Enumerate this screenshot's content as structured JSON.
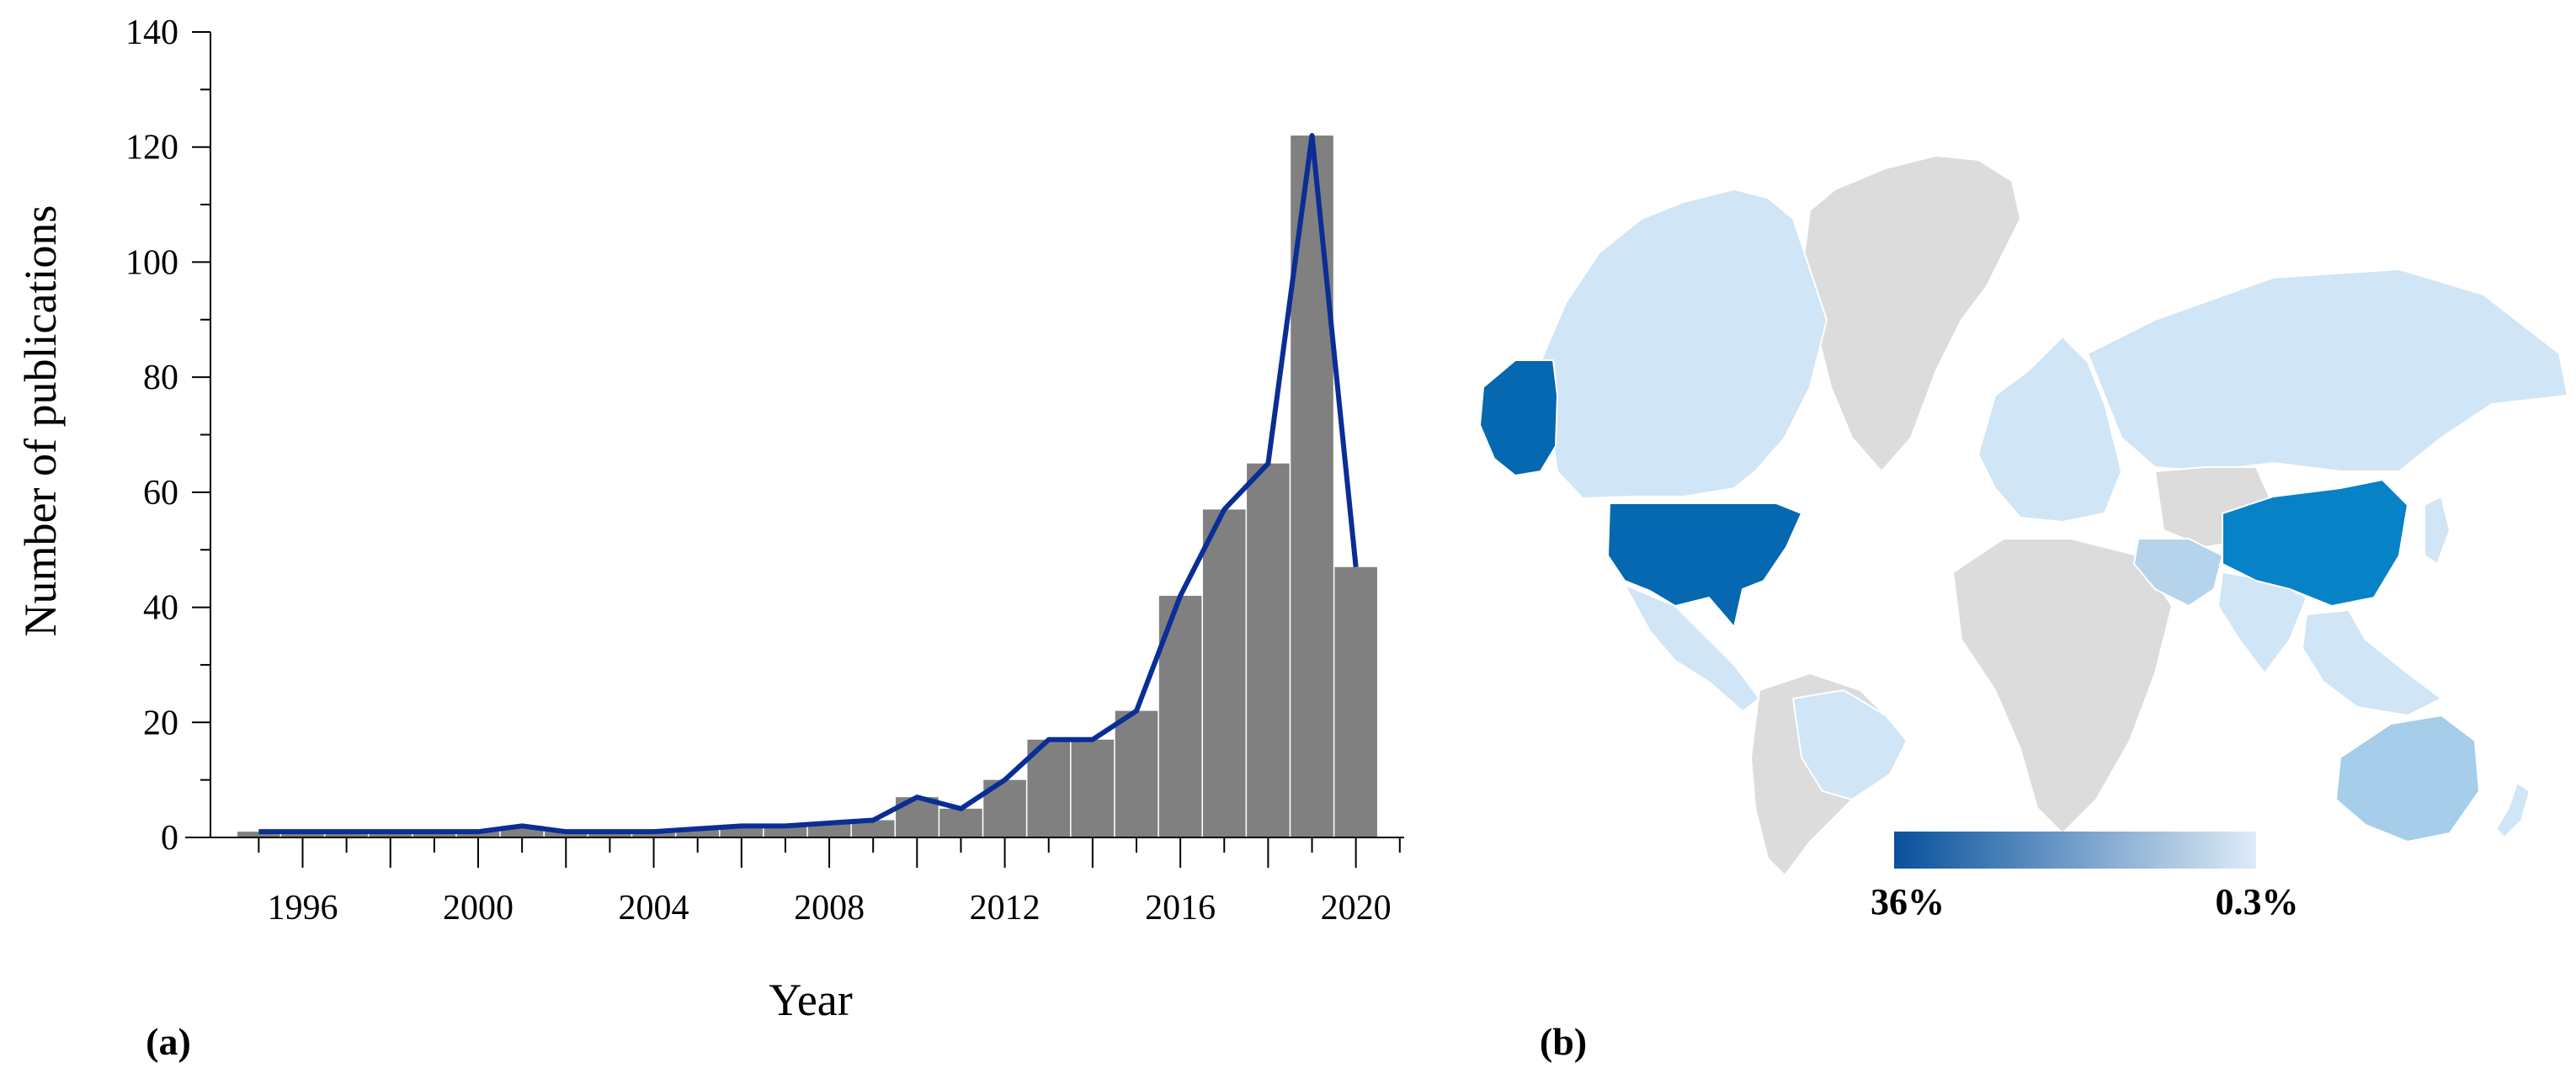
{
  "panel_labels": {
    "a": "(a)",
    "b": "(b)"
  },
  "chart_data": [
    {
      "type": "bar",
      "title": "",
      "xlabel": "Year",
      "ylabel": "Number of publications",
      "x": [
        1995,
        1996,
        1997,
        1998,
        1999,
        2000,
        2001,
        2002,
        2003,
        2004,
        2005,
        2006,
        2007,
        2008,
        2009,
        2010,
        2011,
        2012,
        2013,
        2014,
        2015,
        2016,
        2017,
        2018,
        2019,
        2020
      ],
      "values": [
        1,
        1,
        1,
        1,
        1,
        1,
        2,
        1,
        1,
        1,
        1.5,
        2,
        2,
        2.5,
        3,
        7,
        5,
        10,
        17,
        17,
        22,
        42,
        57,
        65,
        122,
        47
      ],
      "line_values": [
        1,
        1,
        1,
        1,
        1,
        1,
        2,
        1,
        1,
        1,
        1.5,
        2,
        2,
        2.5,
        3,
        7,
        5,
        10,
        17,
        17,
        22,
        42,
        57,
        65,
        122,
        47
      ],
      "ylim": [
        0,
        140
      ],
      "xlim": [
        1993.9,
        2021.1
      ],
      "ytick_labels": [
        "0",
        "20",
        "40",
        "60",
        "80",
        "100",
        "120",
        "140"
      ],
      "ytick_values": [
        0,
        20,
        40,
        60,
        80,
        100,
        120,
        140
      ],
      "xtick_labels": [
        "1996",
        "2000",
        "2004",
        "2008",
        "2012",
        "2016",
        "2020"
      ],
      "xtick_values": [
        1996,
        2000,
        2004,
        2008,
        2012,
        2016,
        2020
      ],
      "bar_color": "#808080",
      "line_color": "#0a2e96",
      "grid": false
    },
    {
      "type": "map",
      "title": "",
      "legend": {
        "max_label": "36%",
        "min_label": "0.3%",
        "max_color": "#08519c",
        "min_color": "#deebf7"
      },
      "regions": [
        {
          "name": "Canada",
          "color": "#d0e5f5"
        },
        {
          "name": "Alaska",
          "color": "#0568b0"
        },
        {
          "name": "United States",
          "color": "#0568b0"
        },
        {
          "name": "Greenland",
          "color": "#dcdcdc"
        },
        {
          "name": "Mexico",
          "color": "#d0e5f5"
        },
        {
          "name": "South America",
          "color": "#dcdcdc"
        },
        {
          "name": "Brazil",
          "color": "#d0e5f5"
        },
        {
          "name": "Europe",
          "color": "#d0e5f5"
        },
        {
          "name": "Africa",
          "color": "#dcdcdc"
        },
        {
          "name": "Russia",
          "color": "#d0e5f5"
        },
        {
          "name": "Central Asia",
          "color": "#dcdcdc"
        },
        {
          "name": "Iran",
          "color": "#b5d4ec"
        },
        {
          "name": "India",
          "color": "#d0e5f5"
        },
        {
          "name": "China",
          "color": "#0882c6"
        },
        {
          "name": "Southeast Asia",
          "color": "#d0e5f5"
        },
        {
          "name": "Japan",
          "color": "#d0e5f5"
        },
        {
          "name": "Australia",
          "color": "#a6cde9"
        },
        {
          "name": "New Zealand",
          "color": "#d0e5f5"
        }
      ]
    }
  ]
}
